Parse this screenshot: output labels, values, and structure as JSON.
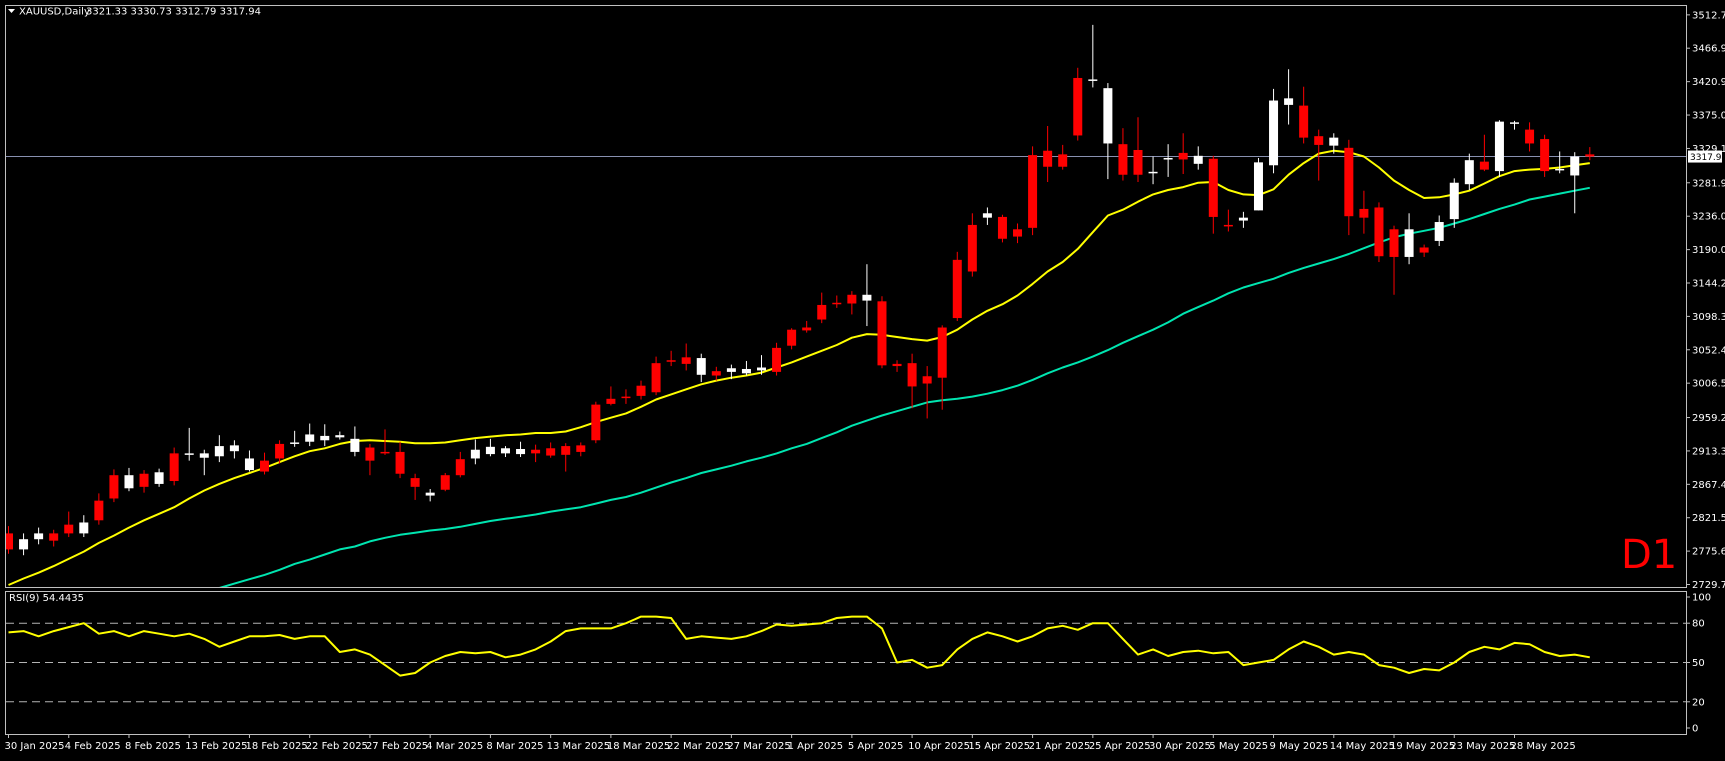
{
  "chart_data": {
    "type": "candlestick",
    "symbol_label": "XAUUSD,Daily",
    "ohlc_label": "3321.33 3330.73 3312.79 3317.94",
    "timeframe_label": "D1",
    "current_price_label": "3317.94",
    "colors": {
      "background": "#000000",
      "frame": "#c0c0c0",
      "bull": "#ffffff",
      "bear": "#ff0000",
      "ma_fast": "#ffff00",
      "ma_slow": "#00e5b0",
      "rsi": "#ffff00",
      "price_line": "#8890b0",
      "level_line": "#b4b4b4"
    },
    "price_axis": {
      "ylim": [
        2729.75,
        3521.5
      ],
      "ticks": [
        "3512.75",
        "3466.95",
        "3420.95",
        "3375.05",
        "3329.15",
        "3281.95",
        "3236.00",
        "3190.05",
        "3144.20",
        "3098.30",
        "3052.40",
        "3006.50",
        "2959.25",
        "2913.35",
        "2867.45",
        "2821.55",
        "2775.65",
        "2729.75"
      ]
    },
    "x_labels": [
      {
        "i": 0,
        "text": "30 Jan 2025"
      },
      {
        "i": 4,
        "text": "4 Feb 2025"
      },
      {
        "i": 8,
        "text": "8 Feb 2025"
      },
      {
        "i": 12,
        "text": "13 Feb 2025"
      },
      {
        "i": 16,
        "text": "18 Feb 2025"
      },
      {
        "i": 20,
        "text": "22 Feb 2025"
      },
      {
        "i": 24,
        "text": "27 Feb 2025"
      },
      {
        "i": 28,
        "text": "4 Mar 2025"
      },
      {
        "i": 32,
        "text": "8 Mar 2025"
      },
      {
        "i": 36,
        "text": "13 Mar 2025"
      },
      {
        "i": 40,
        "text": "18 Mar 2025"
      },
      {
        "i": 44,
        "text": "22 Mar 2025"
      },
      {
        "i": 48,
        "text": "27 Mar 2025"
      },
      {
        "i": 52,
        "text": "1 Apr 2025"
      },
      {
        "i": 56,
        "text": "5 Apr 2025"
      },
      {
        "i": 60,
        "text": "10 Apr 2025"
      },
      {
        "i": 64,
        "text": "15 Apr 2025"
      },
      {
        "i": 68,
        "text": "21 Apr 2025"
      },
      {
        "i": 72,
        "text": "25 Apr 2025"
      },
      {
        "i": 76,
        "text": "30 Apr 2025"
      },
      {
        "i": 80,
        "text": "5 May 2025"
      },
      {
        "i": 84,
        "text": "9 May 2025"
      },
      {
        "i": 88,
        "text": "14 May 2025"
      },
      {
        "i": 92,
        "text": "19 May 2025"
      },
      {
        "i": 96,
        "text": "23 May 2025"
      },
      {
        "i": 100,
        "text": "28 May 2025"
      }
    ],
    "candles": [
      [
        2800,
        2778,
        2810,
        2772
      ],
      [
        2778,
        2792,
        2800,
        2770
      ],
      [
        2792,
        2800,
        2808,
        2785
      ],
      [
        2800,
        2790,
        2805,
        2782
      ],
      [
        2812,
        2800,
        2830,
        2795
      ],
      [
        2800,
        2815,
        2825,
        2795
      ],
      [
        2845,
        2818,
        2855,
        2812
      ],
      [
        2880,
        2848,
        2888,
        2843
      ],
      [
        2862,
        2880,
        2890,
        2858
      ],
      [
        2882,
        2864,
        2887,
        2856
      ],
      [
        2868,
        2884,
        2889,
        2864
      ],
      [
        2910,
        2872,
        2918,
        2866
      ],
      [
        2908,
        2910,
        2945,
        2900
      ],
      [
        2904,
        2910,
        2915,
        2880
      ],
      [
        2906,
        2920,
        2935,
        2898
      ],
      [
        2913,
        2921,
        2928,
        2903
      ],
      [
        2887,
        2903,
        2914,
        2885
      ],
      [
        2900,
        2885,
        2911,
        2881
      ],
      [
        2923,
        2903,
        2928,
        2896
      ],
      [
        2924,
        2925,
        2941,
        2919
      ],
      [
        2926,
        2936,
        2951,
        2920
      ],
      [
        2928,
        2934,
        2950,
        2920
      ],
      [
        2932,
        2935,
        2940,
        2929
      ],
      [
        2912,
        2930,
        2947,
        2906
      ],
      [
        2918,
        2900,
        2923,
        2880
      ],
      [
        2912,
        2910,
        2943,
        2908
      ],
      [
        2912,
        2882,
        2926,
        2876
      ],
      [
        2876,
        2864,
        2882,
        2846
      ],
      [
        2852,
        2856,
        2861,
        2844
      ],
      [
        2880,
        2860,
        2883,
        2858
      ],
      [
        2902,
        2880,
        2912,
        2877
      ],
      [
        2903,
        2915,
        2929,
        2895
      ],
      [
        2909,
        2919,
        2930,
        2906
      ],
      [
        2910,
        2917,
        2920,
        2905
      ],
      [
        2909,
        2916,
        2926,
        2905
      ],
      [
        2915,
        2910,
        2922,
        2898
      ],
      [
        2917,
        2907,
        2925,
        2904
      ],
      [
        2920,
        2908,
        2924,
        2885
      ],
      [
        2921,
        2912,
        2925,
        2906
      ],
      [
        2977,
        2928,
        2981,
        2924
      ],
      [
        2985,
        2978,
        3002,
        2976
      ],
      [
        2988,
        2986,
        2998,
        2978
      ],
      [
        3003,
        2989,
        3010,
        2984
      ],
      [
        3034,
        2994,
        3043,
        2990
      ],
      [
        3038,
        3036,
        3051,
        3030
      ],
      [
        3042,
        3033,
        3061,
        3024
      ],
      [
        3018,
        3041,
        3047,
        3008
      ],
      [
        3023,
        3017,
        3029,
        3010
      ],
      [
        3022,
        3027,
        3032,
        3012
      ],
      [
        3020,
        3026,
        3037,
        3017
      ],
      [
        3024,
        3028,
        3045,
        3018
      ],
      [
        3055,
        3022,
        3062,
        3017
      ],
      [
        3080,
        3058,
        3082,
        3053
      ],
      [
        3083,
        3079,
        3092,
        3076
      ],
      [
        3114,
        3094,
        3131,
        3089
      ],
      [
        3117,
        3116,
        3127,
        3110
      ],
      [
        3128,
        3116,
        3133,
        3101
      ],
      [
        3120,
        3128,
        3170,
        3085
      ],
      [
        3119,
        3031,
        3126,
        3027
      ],
      [
        3033,
        3030,
        3038,
        3022
      ],
      [
        3034,
        3002,
        3047,
        2972
      ],
      [
        3016,
        3006,
        3030,
        2958
      ],
      [
        3083,
        3014,
        3086,
        2970
      ],
      [
        3176,
        3096,
        3187,
        3092
      ],
      [
        3224,
        3160,
        3240,
        3153
      ],
      [
        3234,
        3240,
        3248,
        3224
      ],
      [
        3235,
        3205,
        3238,
        3200
      ],
      [
        3218,
        3208,
        3226,
        3199
      ],
      [
        3320,
        3220,
        3332,
        3210
      ],
      [
        3326,
        3304,
        3360,
        3283
      ],
      [
        3321,
        3304,
        3334,
        3300
      ],
      [
        3426,
        3347,
        3440,
        3340
      ],
      [
        3423,
        3424,
        3499,
        3413
      ],
      [
        3336,
        3412,
        3419,
        3287
      ],
      [
        3335,
        3293,
        3357,
        3285
      ],
      [
        3327,
        3293,
        3372,
        3283
      ],
      [
        3297,
        3297,
        3318,
        3280
      ],
      [
        3314,
        3316,
        3335,
        3290
      ],
      [
        3323,
        3314,
        3350,
        3294
      ],
      [
        3308,
        3319,
        3332,
        3300
      ],
      [
        3315,
        3235,
        3319,
        3212
      ],
      [
        3224,
        3222,
        3245,
        3215
      ],
      [
        3230,
        3234,
        3242,
        3220
      ],
      [
        3244,
        3310,
        3316,
        3244
      ],
      [
        3306,
        3395,
        3411,
        3295
      ],
      [
        3389,
        3398,
        3438,
        3362
      ],
      [
        3388,
        3344,
        3414,
        3336
      ],
      [
        3346,
        3334,
        3355,
        3285
      ],
      [
        3333,
        3344,
        3350,
        3322
      ],
      [
        3330,
        3236,
        3341,
        3210
      ],
      [
        3246,
        3234,
        3271,
        3212
      ],
      [
        3248,
        3181,
        3255,
        3173
      ],
      [
        3218,
        3180,
        3223,
        3128
      ],
      [
        3180,
        3218,
        3240,
        3170
      ],
      [
        3193,
        3186,
        3197,
        3180
      ],
      [
        3202,
        3228,
        3237,
        3195
      ],
      [
        3232,
        3282,
        3288,
        3220
      ],
      [
        3280,
        3313,
        3322,
        3272
      ],
      [
        3311,
        3300,
        3348,
        3298
      ],
      [
        3298,
        3366,
        3368,
        3290
      ],
      [
        3364,
        3365,
        3367,
        3355
      ],
      [
        3355,
        3336,
        3365,
        3325
      ],
      [
        3342,
        3298,
        3348,
        3290
      ],
      [
        3299,
        3301,
        3325,
        3295
      ],
      [
        3292,
        3318,
        3324,
        3240
      ],
      [
        3321,
        3318,
        3331,
        3313
      ]
    ],
    "ma_fast": [
      2729,
      2738,
      2746,
      2755,
      2765,
      2775,
      2787,
      2797,
      2808,
      2818,
      2827,
      2836,
      2848,
      2859,
      2868,
      2876,
      2883,
      2890,
      2898,
      2906,
      2913,
      2917,
      2923,
      2927,
      2928,
      2927,
      2926,
      2924,
      2924,
      2925,
      2928,
      2931,
      2933,
      2935,
      2936,
      2938,
      2938,
      2940,
      2946,
      2953,
      2959,
      2965,
      2974,
      2984,
      2991,
      2998,
      3005,
      3010,
      3014,
      3017,
      3021,
      3028,
      3035,
      3043,
      3051,
      3059,
      3069,
      3074,
      3073,
      3070,
      3067,
      3065,
      3070,
      3080,
      3094,
      3106,
      3115,
      3127,
      3143,
      3160,
      3173,
      3191,
      3214,
      3237,
      3245,
      3256,
      3266,
      3272,
      3276,
      3282,
      3283,
      3272,
      3266,
      3265,
      3273,
      3293,
      3309,
      3322,
      3326,
      3324,
      3318,
      3303,
      3285,
      3272,
      3261,
      3262,
      3266,
      3271,
      3281,
      3291,
      3298,
      3300,
      3301,
      3303,
      3306,
      3309
    ],
    "ma_slow": [
      2630,
      2637,
      2644,
      2651,
      2657,
      2664,
      2670,
      2677,
      2684,
      2691,
      2698,
      2704,
      2711,
      2719,
      2725,
      2731,
      2737,
      2743,
      2750,
      2758,
      2764,
      2771,
      2778,
      2782,
      2789,
      2794,
      2798,
      2801,
      2804,
      2806,
      2809,
      2813,
      2817,
      2820,
      2823,
      2826,
      2830,
      2833,
      2836,
      2841,
      2846,
      2850,
      2856,
      2863,
      2870,
      2876,
      2883,
      2888,
      2893,
      2899,
      2904,
      2910,
      2917,
      2923,
      2931,
      2939,
      2948,
      2955,
      2962,
      2968,
      2974,
      2980,
      2983,
      2985,
      2988,
      2992,
      2997,
      3003,
      3011,
      3020,
      3028,
      3035,
      3043,
      3052,
      3062,
      3071,
      3080,
      3090,
      3102,
      3111,
      3120,
      3130,
      3138,
      3144,
      3150,
      3158,
      3165,
      3171,
      3177,
      3184,
      3192,
      3200,
      3207,
      3212,
      3216,
      3220,
      3226,
      3232,
      3239,
      3246,
      3252,
      3259,
      3263,
      3267,
      3271,
      3275
    ],
    "rsi": {
      "label": "RSI(9) 54.4435",
      "ylim": [
        0,
        100
      ],
      "levels": [
        80,
        50,
        20
      ],
      "tick_labels": [
        "100",
        "80",
        "50",
        "20",
        "0"
      ],
      "values": [
        73,
        74,
        70,
        74,
        77,
        80,
        72,
        74,
        70,
        74,
        72,
        70,
        72,
        68,
        62,
        66,
        70,
        70,
        71,
        68,
        70,
        70,
        58,
        60,
        56,
        48,
        40,
        42,
        50,
        55,
        58,
        57,
        58,
        54,
        56,
        60,
        66,
        74,
        76,
        76,
        76,
        80,
        85,
        85,
        84,
        68,
        70,
        69,
        68,
        70,
        74,
        79,
        78,
        79,
        80,
        84,
        85,
        85,
        76,
        50,
        52,
        46,
        48,
        60,
        68,
        73,
        70,
        66,
        70,
        76,
        78,
        75,
        80,
        80,
        68,
        56,
        60,
        55,
        58,
        59,
        57,
        58,
        48,
        50,
        52,
        60,
        66,
        62,
        56,
        58,
        56,
        48,
        46,
        42,
        45,
        44,
        50,
        58,
        62,
        60,
        65,
        64,
        58,
        55,
        56,
        54
      ]
    }
  }
}
